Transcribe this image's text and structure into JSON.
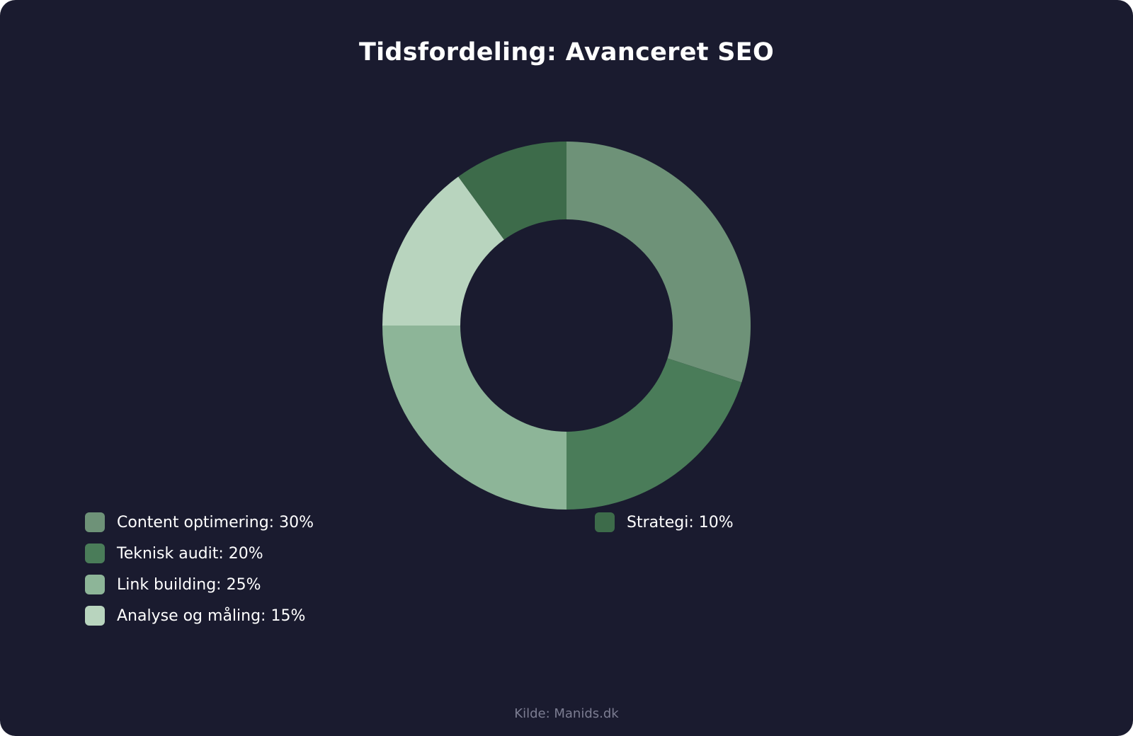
{
  "chart_data": {
    "type": "pie",
    "title": "Tidsfordeling: Avanceret SEO",
    "categories": [
      "Content optimering",
      "Teknisk audit",
      "Link building",
      "Analyse og måling",
      "Strategi"
    ],
    "values": [
      30,
      20,
      25,
      15,
      10
    ],
    "unit": "%",
    "colors": [
      "#6e9278",
      "#4a7c59",
      "#8db598",
      "#b8d4be",
      "#3d6b4a"
    ],
    "legend": {
      "placement": "bottom-left",
      "entries": [
        "Content optimering: 30%",
        "Teknisk audit: 20%",
        "Link building: 25%",
        "Analyse og måling: 15%",
        "Strategi: 10%"
      ]
    },
    "donut": true
  },
  "source": "Kilde: Manids.dk",
  "colors": {
    "background": "#1a1b2f",
    "text": "#ffffff",
    "muted": "#7c7d92"
  }
}
